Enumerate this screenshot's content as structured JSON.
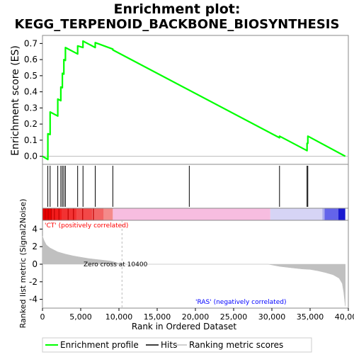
{
  "chart_data": {
    "type": "line",
    "title_line1": "Enrichment plot:",
    "title_line2": "KEGG_TERPENOID_BACKBONE_BIOSYNTHESIS",
    "es_panel": {
      "ylabel": "Enrichment score (ES)",
      "ylim": [
        -0.05,
        0.75
      ],
      "yticks": [
        "0.0",
        "0.1",
        "0.2",
        "0.3",
        "0.4",
        "0.5",
        "0.6",
        "0.7"
      ],
      "ytick_values": [
        0.0,
        0.1,
        0.2,
        0.3,
        0.4,
        0.5,
        0.6,
        0.7
      ],
      "line_color": "#00ff00",
      "series": [
        {
          "x": [
            0,
            700,
            700,
            1000,
            1000,
            2000,
            2000,
            2400,
            2400,
            2600,
            2600,
            2800,
            2800,
            3000,
            3000,
            4600,
            4600,
            5300,
            5300,
            6900,
            6900,
            9200,
            9200,
            31000,
            31000,
            34600,
            34600,
            34700,
            34700,
            39600
          ],
          "y": [
            0.0,
            -0.02,
            0.14,
            0.135,
            0.275,
            0.25,
            0.355,
            0.345,
            0.43,
            0.425,
            0.515,
            0.51,
            0.6,
            0.595,
            0.675,
            0.635,
            0.685,
            0.675,
            0.715,
            0.675,
            0.705,
            0.665,
            0.66,
            0.115,
            0.125,
            0.035,
            0.08,
            0.08,
            0.125,
            0.0
          ]
        }
      ]
    },
    "hits": [
      700,
      1000,
      2000,
      2400,
      2600,
      2800,
      3000,
      4600,
      5300,
      6900,
      9200,
      19200,
      31000,
      34600,
      34700
    ],
    "metric_panel": {
      "ylabel": "Ranked list metric (Signal2Noise)",
      "ylim": [
        -5,
        5
      ],
      "yticks": [
        "4",
        "2",
        "0",
        "-2",
        "-4"
      ],
      "ytick_values": [
        4,
        2,
        0,
        -2,
        -4
      ],
      "zero_cross_label": "Zero cross at 10400",
      "zero_cross": 10400,
      "pos_label": "'CT' (positively correlated)",
      "neg_label": "'RAS' (negatively correlated)",
      "pos_color": "#ff0000",
      "neg_color": "#0000ff",
      "fill_color": "#c0c0c0",
      "curve_x": [
        0,
        200,
        500,
        1000,
        2000,
        3000,
        4000,
        5000,
        6000,
        7000,
        8000,
        9000,
        10000,
        10400,
        15000,
        20000,
        25000,
        29500,
        29800,
        31000,
        32500,
        34000,
        35000,
        36000,
        37000,
        38000,
        38800,
        39200,
        39400,
        39600
      ],
      "curve_y": [
        3.2,
        2.7,
        2.2,
        1.85,
        1.4,
        1.15,
        0.95,
        0.8,
        0.65,
        0.55,
        0.45,
        0.35,
        0.1,
        0.0,
        0.0,
        0.0,
        0.0,
        0.0,
        -0.05,
        -0.25,
        -0.4,
        -0.55,
        -0.6,
        -0.75,
        -0.95,
        -1.2,
        -1.6,
        -2.2,
        -3.2,
        -4.8
      ]
    },
    "xlabel": "Rank in Ordered Dataset",
    "xlim": [
      0,
      40000
    ],
    "xticks": [
      "0",
      "5,000",
      "10,000",
      "15,000",
      "20,000",
      "25,000",
      "30,000",
      "35,000",
      "40,000"
    ],
    "xtick_values": [
      0,
      5000,
      10000,
      15000,
      20000,
      25000,
      30000,
      35000,
      40000
    ],
    "legend": {
      "enrichment_label": "Enrichment profile",
      "hits_label": "Hits",
      "metric_label": "Ranking metric scores",
      "placement": "bottom"
    }
  }
}
